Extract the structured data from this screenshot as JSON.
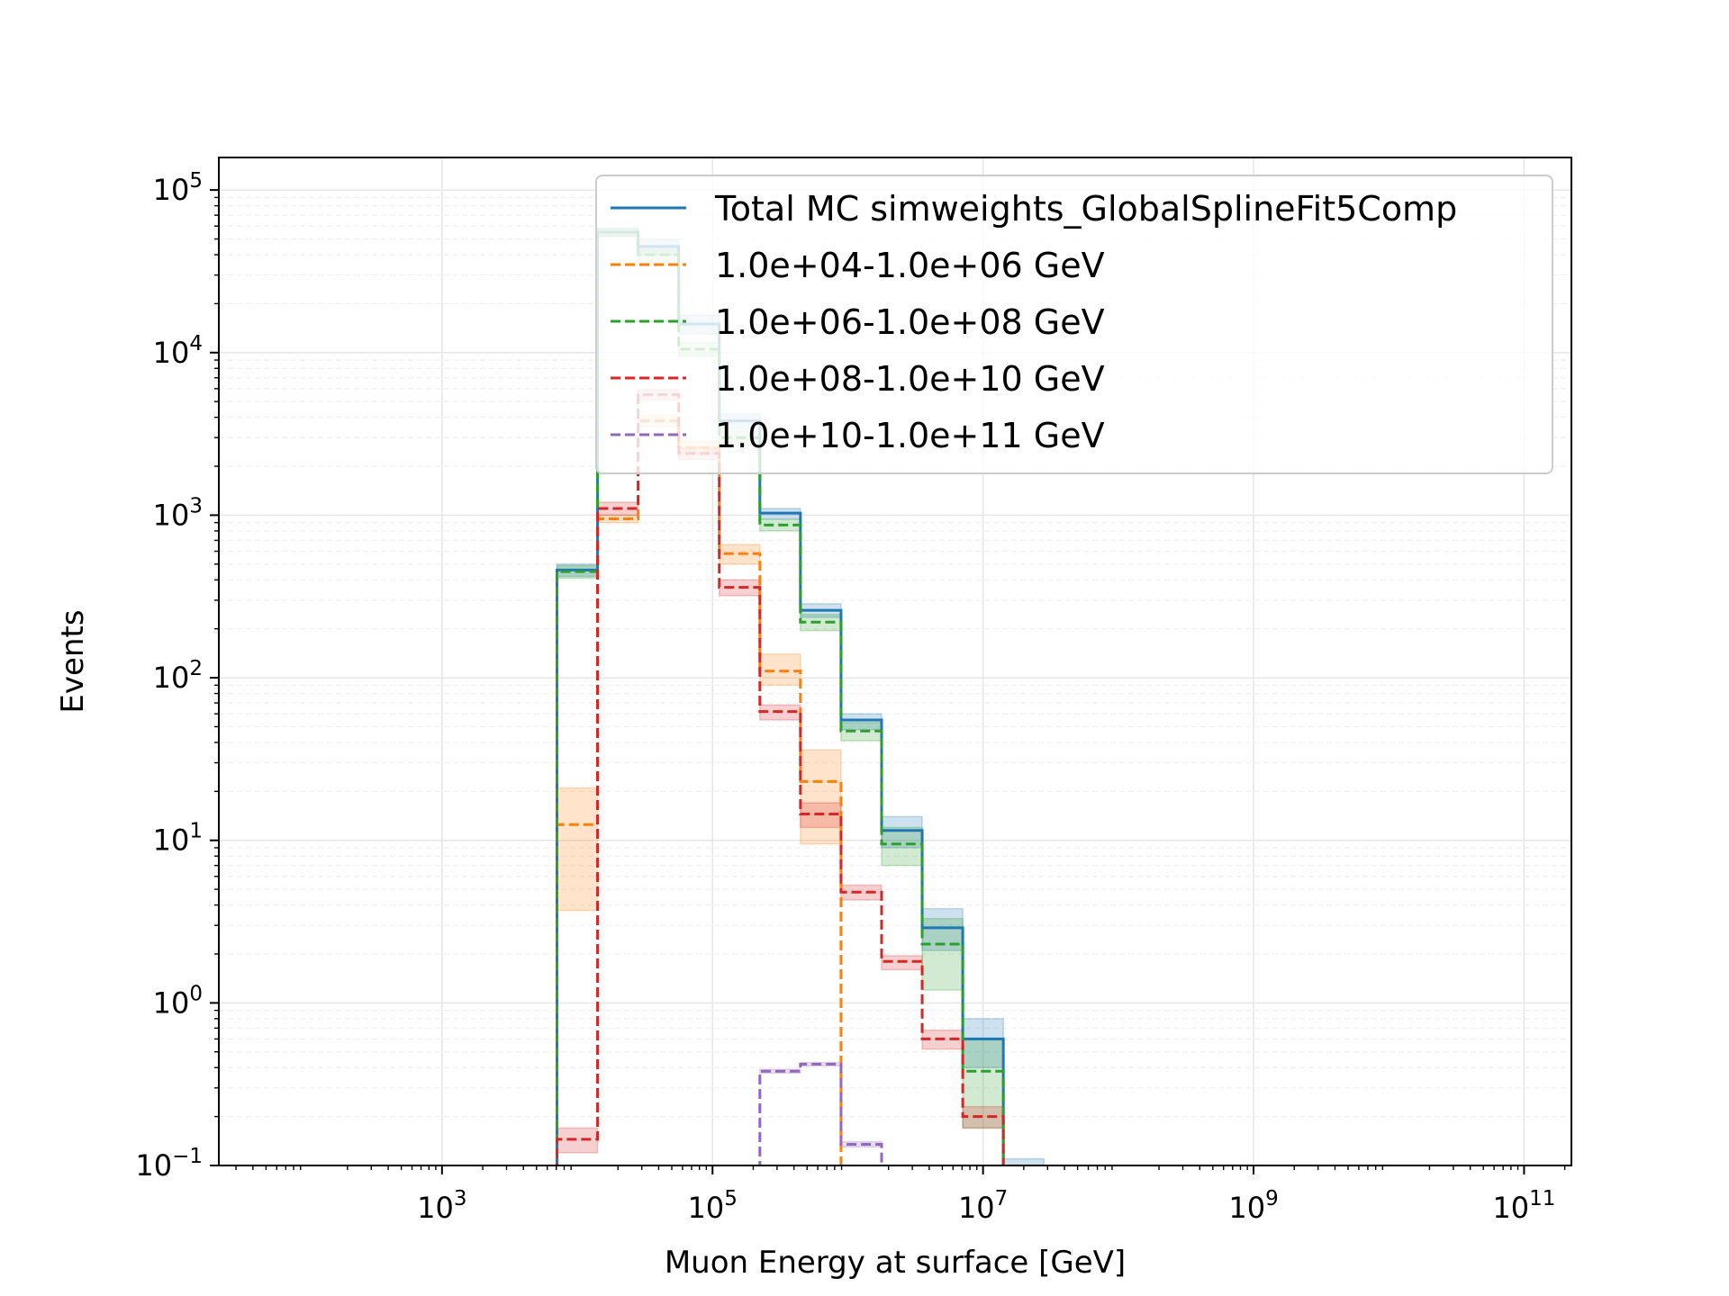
{
  "chart_data": {
    "type": "line",
    "title": "",
    "xlabel": "Muon Energy at surface [GeV]",
    "ylabel": "Events",
    "xscale": "log",
    "yscale": "log",
    "xlim_exp": [
      1.35,
      11.35
    ],
    "ylim_exp": [
      -1,
      5.2
    ],
    "xticks": [
      {
        "base": "10",
        "exp": "3",
        "value_exp": 3
      },
      {
        "base": "10",
        "exp": "5",
        "value_exp": 5
      },
      {
        "base": "10",
        "exp": "7",
        "value_exp": 7
      },
      {
        "base": "10",
        "exp": "9",
        "value_exp": 9
      },
      {
        "base": "10",
        "exp": "11",
        "value_exp": 11
      }
    ],
    "yticks": [
      {
        "base": "10",
        "exp": "−1",
        "value_exp": -1
      },
      {
        "base": "10",
        "exp": "0",
        "value_exp": 0
      },
      {
        "base": "10",
        "exp": "1",
        "value_exp": 1
      },
      {
        "base": "10",
        "exp": "2",
        "value_exp": 2
      },
      {
        "base": "10",
        "exp": "3",
        "value_exp": 3
      },
      {
        "base": "10",
        "exp": "4",
        "value_exp": 4
      },
      {
        "base": "10",
        "exp": "5",
        "value_exp": 5
      }
    ],
    "grid": true,
    "legend_position": "top-right",
    "bin_edges_log10": [
      3.85,
      4.15,
      4.45,
      4.75,
      5.05,
      5.35,
      5.65,
      5.95,
      6.25,
      6.55,
      6.85,
      7.15,
      7.45
    ],
    "series": [
      {
        "name": "Total MC simweights_GlobalSplineFit5Comp",
        "color": "#1f77b4",
        "style": "solid",
        "values": [
          460,
          55000,
          45000,
          15000,
          3800,
          1030,
          260,
          55,
          11.5,
          2.9,
          0.6,
          0.08
        ],
        "err_low": [
          420,
          52000,
          40000,
          13000,
          3400,
          950,
          235,
          48,
          9,
          2.1,
          0.4,
          0.07
        ],
        "err_high": [
          500,
          58000,
          50000,
          17000,
          4200,
          1100,
          285,
          60,
          14,
          3.8,
          0.8,
          0.11
        ]
      },
      {
        "name": "1.0e+04-1.0e+06 GeV",
        "color": "#ff7f0e",
        "style": "dashed",
        "values": [
          12.5,
          950,
          3800,
          2600,
          580,
          110,
          23,
          0.05
        ],
        "err_low": [
          3.7,
          900,
          3500,
          2350,
          500,
          90,
          9.5,
          0.04
        ],
        "err_high": [
          21,
          1000,
          4100,
          2850,
          660,
          140,
          36,
          0.06
        ]
      },
      {
        "name": "1.0e+06-1.0e+08 GeV",
        "color": "#2ca02c",
        "style": "dashed",
        "values": [
          450,
          55000,
          40000,
          10500,
          3000,
          870,
          220,
          47,
          9.5,
          2.3,
          0.38,
          0.06
        ],
        "err_low": [
          410,
          52000,
          36000,
          9500,
          2700,
          800,
          195,
          41,
          7,
          1.2,
          0.17,
          0.05
        ],
        "err_high": [
          490,
          58000,
          44000,
          11500,
          3300,
          940,
          245,
          53,
          12,
          3.3,
          0.6,
          0.08
        ]
      },
      {
        "name": "1.0e+08-1.0e+10 GeV",
        "color": "#d62728",
        "style": "dashed",
        "values": [
          0.145,
          1100,
          5500,
          2400,
          360,
          62,
          14.5,
          4.8,
          1.8,
          0.6,
          0.2,
          0.05
        ],
        "err_low": [
          0.12,
          1000,
          5100,
          2200,
          320,
          55,
          12,
          4.3,
          1.6,
          0.52,
          0.17,
          0.04
        ],
        "err_high": [
          0.17,
          1200,
          5900,
          2600,
          400,
          68,
          17,
          5.3,
          1.95,
          0.68,
          0.23,
          0.06
        ]
      },
      {
        "name": "1.0e+10-1.0e+11 GeV",
        "color": "#9467bd",
        "style": "dashed",
        "values": [
          0.05,
          0.05,
          0.05,
          0.05,
          0.05,
          0.38,
          0.42,
          0.135,
          0.05,
          0.05,
          0.05,
          0.05
        ],
        "err_low": [
          0.05,
          0.05,
          0.05,
          0.05,
          0.05,
          0.37,
          0.41,
          0.13,
          0.05,
          0.05,
          0.05,
          0.05
        ],
        "err_high": [
          0.05,
          0.05,
          0.05,
          0.05,
          0.05,
          0.39,
          0.43,
          0.14,
          0.05,
          0.05,
          0.05,
          0.05
        ]
      }
    ]
  }
}
